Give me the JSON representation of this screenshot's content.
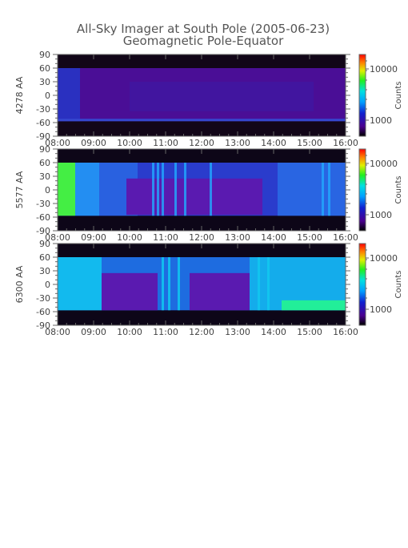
{
  "figure": {
    "title": "All-Sky Imager at South Pole (2005-06-23)",
    "subtitle": "Geomagnetic Pole-Equator"
  },
  "chart_data": [
    {
      "type": "heatmap",
      "ylabel": "4278 AA",
      "colorbar_label": "Counts",
      "colorbar_ticks": [
        "10000",
        "1000"
      ],
      "x_ticks": [
        "08:00",
        "09:00",
        "10:00",
        "11:00",
        "12:00",
        "13:00",
        "14:00",
        "15:00",
        "16:00"
      ],
      "y_ticks": [
        "90",
        "60",
        "30",
        "0",
        "-30",
        "-60",
        "-90"
      ],
      "xlim": [
        "08:00",
        "16:00"
      ],
      "ylim": [
        -90,
        90
      ],
      "colors": {
        "dark": "#120618",
        "base": "#4a0e96",
        "mid": "#3a1ca8"
      }
    },
    {
      "type": "heatmap",
      "ylabel": "5577 AA",
      "colorbar_label": "Counts",
      "colorbar_ticks": [
        "10000",
        "1000"
      ],
      "x_ticks": [
        "08:00",
        "09:00",
        "10:00",
        "11:00",
        "12:00",
        "13:00",
        "14:00",
        "15:00",
        "16:00"
      ],
      "y_ticks": [
        "90",
        "60",
        "30",
        "0",
        "-30",
        "-60",
        "-90"
      ],
      "xlim": [
        "08:00",
        "16:00"
      ],
      "ylim": [
        -90,
        90
      ],
      "colors": {
        "dark": "#0d0618",
        "base": "#2a3ccc",
        "bright": "#22aaff",
        "green": "#44ee44"
      }
    },
    {
      "type": "heatmap",
      "ylabel": "6300 AA",
      "colorbar_label": "Counts",
      "colorbar_ticks": [
        "10000",
        "1000"
      ],
      "x_ticks": [
        "08:00",
        "09:00",
        "10:00",
        "11:00",
        "12:00",
        "13:00",
        "14:00",
        "15:00",
        "16:00"
      ],
      "y_ticks": [
        "90",
        "60",
        "30",
        "0",
        "-30",
        "-60",
        "-90"
      ],
      "xlim": [
        "08:00",
        "16:00"
      ],
      "ylim": [
        -90,
        90
      ],
      "colors": {
        "dark": "#0d0618",
        "base": "#1e6ce0",
        "bright": "#10c8f0",
        "green": "#22ee99"
      }
    }
  ]
}
